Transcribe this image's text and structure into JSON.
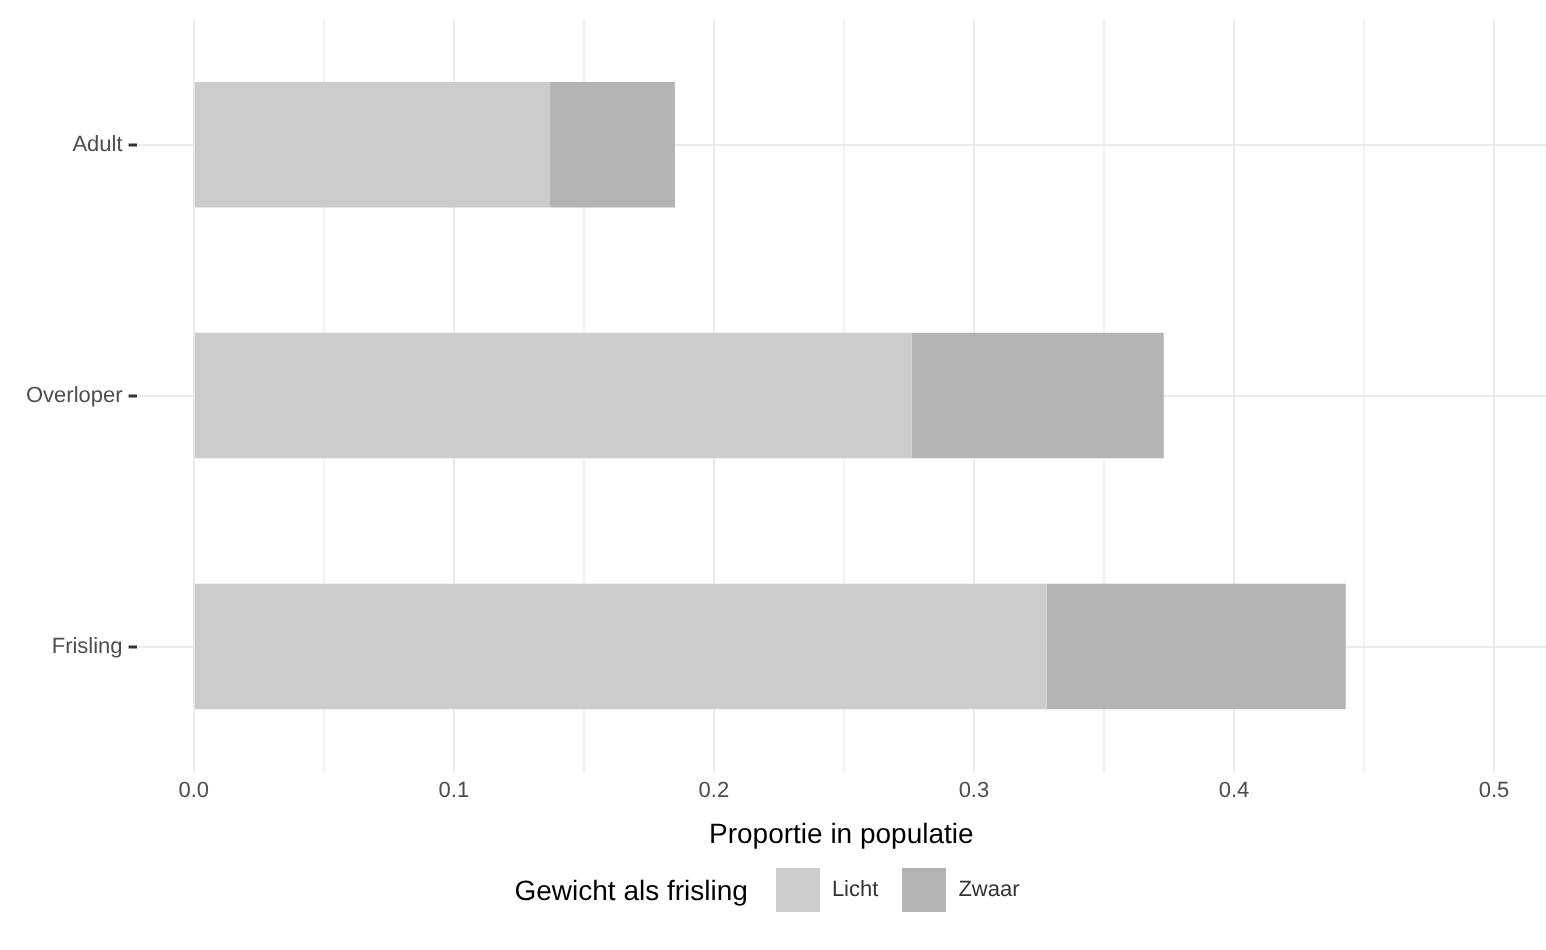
{
  "chart_data": {
    "type": "bar",
    "orientation": "horizontal",
    "stacked": true,
    "categories": [
      "Adult",
      "Overloper",
      "Frisling"
    ],
    "series": [
      {
        "name": "Licht",
        "color": "#cccccc",
        "values": [
          0.137,
          0.276,
          0.328
        ]
      },
      {
        "name": "Zwaar",
        "color": "#b3b3b3",
        "values": [
          0.048,
          0.097,
          0.115
        ]
      }
    ],
    "xlabel": "Proportie in populatie",
    "legend_title": "Gewicht als frisling",
    "legend": "bottom",
    "xlim": [
      -0.022,
      0.52
    ],
    "xticks": [
      {
        "value": 0,
        "label": "0.0"
      },
      {
        "value": 0.05,
        "label": null
      },
      0.1,
      {
        "value": 0.15,
        "label": null
      },
      0.2,
      {
        "value": 0.25,
        "label": null
      },
      0.3,
      {
        "value": 0.35,
        "label": null
      },
      0.4,
      {
        "value": 0.45,
        "label": null
      },
      0.5
    ],
    "grid": true
  }
}
